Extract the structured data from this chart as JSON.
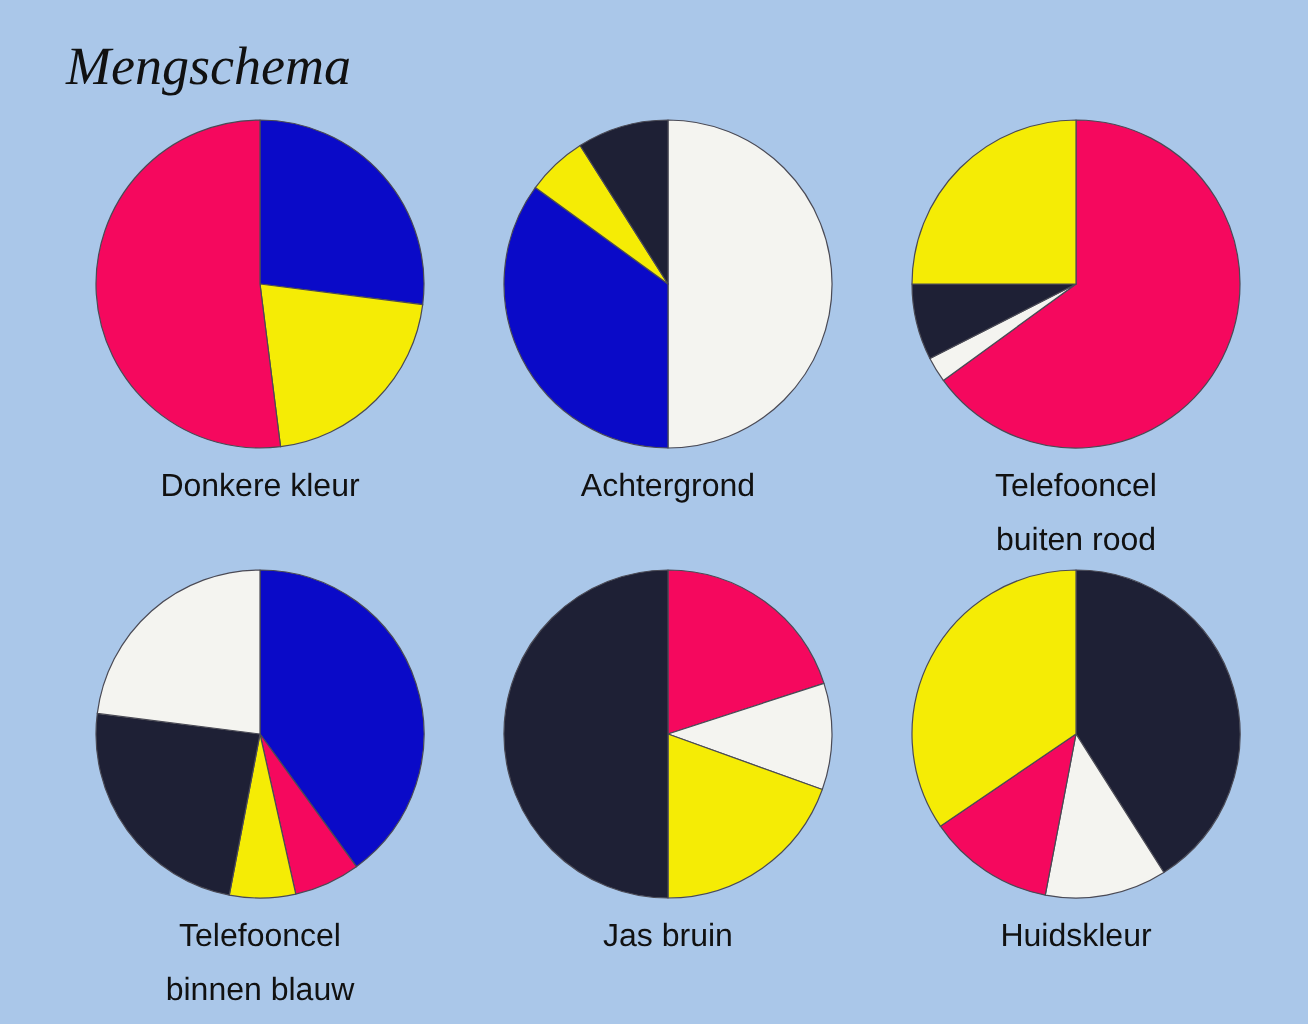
{
  "chart_data": [
    {
      "type": "other",
      "title": "Mengschema"
    },
    {
      "type": "pie",
      "title": "Donkere kleur",
      "categories": [
        null,
        null,
        null
      ],
      "values": [
        27,
        21,
        52
      ],
      "colors": [
        "#0a0ac8",
        "#f5ec05",
        "#f5085e"
      ]
    },
    {
      "type": "pie",
      "title": "Achtergrond",
      "categories": [
        null,
        null,
        null,
        null
      ],
      "values": [
        50,
        35,
        6,
        9
      ],
      "colors": [
        "#f4f4f0",
        "#0a0ac8",
        "#f5ec05",
        "#1e2035"
      ]
    },
    {
      "type": "pie",
      "title": "Telefooncel buiten rood",
      "categories": [
        null,
        null,
        null,
        null
      ],
      "values": [
        65,
        2.5,
        7.5,
        25
      ],
      "colors": [
        "#f5085e",
        "#f4f4f0",
        "#1e2035",
        "#f5ec05"
      ]
    },
    {
      "type": "pie",
      "title": "Telefooncel binnen blauw",
      "categories": [
        null,
        null,
        null,
        null,
        null
      ],
      "values": [
        40,
        6.5,
        6.5,
        24,
        23
      ],
      "colors": [
        "#0a0ac8",
        "#f5085e",
        "#f5ec05",
        "#1e2035",
        "#f4f4f0"
      ]
    },
    {
      "type": "pie",
      "title": "Jas bruin",
      "categories": [
        null,
        null,
        null,
        null
      ],
      "values": [
        20,
        10.5,
        19.5,
        50
      ],
      "colors": [
        "#f5085e",
        "#f4f4f0",
        "#f5ec05",
        "#1e2035"
      ]
    },
    {
      "type": "pie",
      "title": "Huidskleur",
      "categories": [
        null,
        null,
        null,
        null
      ],
      "values": [
        41,
        12,
        12.5,
        34.5
      ],
      "colors": [
        "#1e2035",
        "#f4f4f0",
        "#f5085e",
        "#f5ec05"
      ]
    }
  ]
}
